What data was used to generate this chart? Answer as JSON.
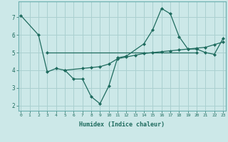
{
  "xlabel": "Humidex (Indice chaleur)",
  "bg_color": "#cce8e8",
  "line_color": "#1e6b5e",
  "grid_color": "#aad0d0",
  "line1_x": [
    0,
    2,
    3,
    4,
    5,
    6,
    7,
    8,
    9,
    10,
    11,
    12,
    14,
    15,
    16,
    17,
    18,
    19,
    20,
    21,
    22,
    23
  ],
  "line1_y": [
    7.1,
    6.0,
    3.9,
    4.1,
    4.0,
    3.5,
    3.5,
    2.5,
    2.1,
    3.1,
    4.7,
    4.8,
    5.5,
    6.3,
    7.5,
    7.2,
    5.9,
    5.2,
    5.2,
    5.0,
    4.9,
    5.8
  ],
  "line2_x": [
    3,
    20
  ],
  "line2_y": [
    5.0,
    5.0
  ],
  "line3_x": [
    5,
    7,
    8,
    9,
    10,
    11,
    12,
    13,
    14,
    15,
    16,
    17,
    18,
    19,
    20,
    21,
    22,
    23
  ],
  "line3_y": [
    4.0,
    4.1,
    4.15,
    4.2,
    4.35,
    4.65,
    4.75,
    4.85,
    4.95,
    5.0,
    5.05,
    5.1,
    5.15,
    5.2,
    5.25,
    5.3,
    5.45,
    5.6
  ],
  "xlim": [
    -0.3,
    23.3
  ],
  "ylim": [
    1.7,
    7.9
  ],
  "yticks": [
    2,
    3,
    4,
    5,
    6,
    7
  ],
  "xticks": [
    0,
    1,
    2,
    3,
    4,
    5,
    6,
    7,
    8,
    9,
    10,
    11,
    12,
    13,
    14,
    15,
    16,
    17,
    18,
    19,
    20,
    21,
    22,
    23
  ]
}
